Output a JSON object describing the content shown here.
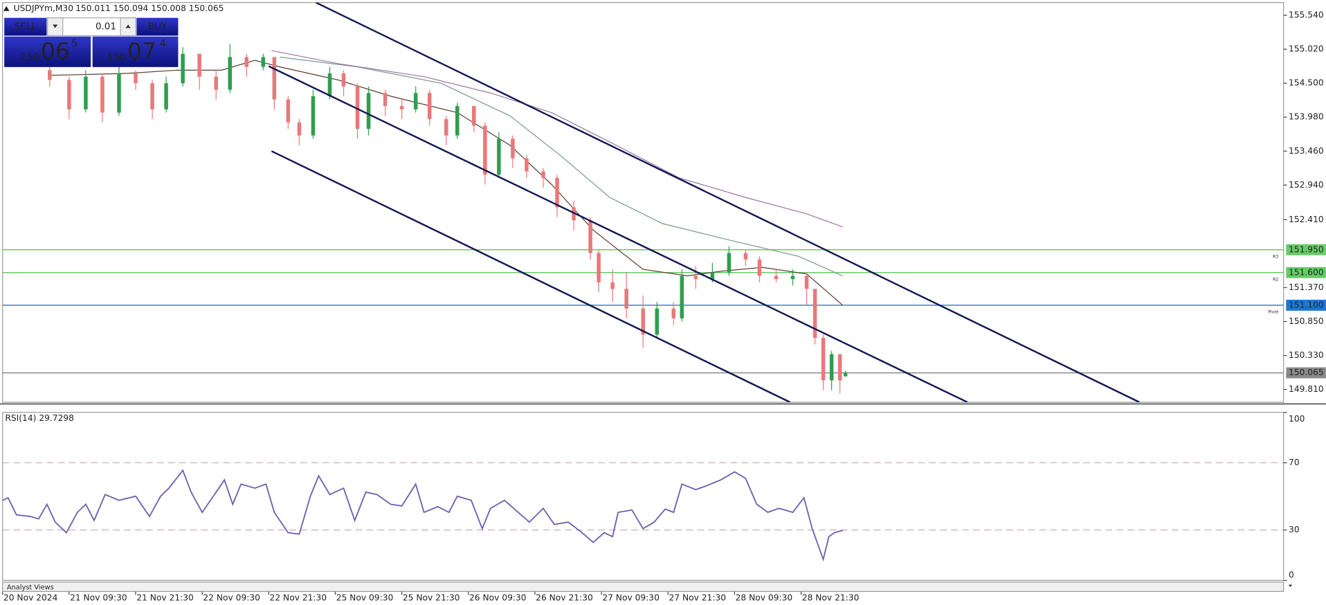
{
  "header": {
    "symbol": "USDJPYm,M30",
    "ohlc": "150.011 150.094 150.008 150.065"
  },
  "trade_panel": {
    "sell": "SELL",
    "lot": "0.01",
    "buy": "BUY",
    "bid_big": "150",
    "bid_main": "06",
    "bid_sup": "5",
    "ask_big": "150",
    "ask_main": "07",
    "ask_sup": "4"
  },
  "bottom_panel": {
    "title": "Analyst Views"
  },
  "chart_data": [
    {
      "type": "candlestick",
      "xlim": [
        0,
        462
      ],
      "ylim": [
        149.615,
        155.735
      ],
      "xticks": [
        {
          "value": 0,
          "label": "20 Nov 2024"
        },
        {
          "value": 24,
          "label": "21 Nov 09:30"
        },
        {
          "value": 48,
          "label": "21 Nov 21:30"
        },
        {
          "value": 72,
          "label": "22 Nov 09:30"
        },
        {
          "value": 96,
          "label": "22 Nov 21:30"
        },
        {
          "value": 120,
          "label": "25 Nov 09:30"
        },
        {
          "value": 144,
          "label": "25 Nov 21:30"
        },
        {
          "value": 168,
          "label": "26 Nov 09:30"
        },
        {
          "value": 192,
          "label": "26 Nov 21:30"
        },
        {
          "value": 216,
          "label": "27 Nov 09:30"
        },
        {
          "value": 240,
          "label": "27 Nov 21:30"
        },
        {
          "value": 264,
          "label": "28 Nov 09:30"
        },
        {
          "value": 288,
          "label": "28 Nov 21:30"
        }
      ],
      "yticks": [
        {
          "value": 155.54,
          "label": "155.540"
        },
        {
          "value": 155.02,
          "label": "155.020"
        },
        {
          "value": 154.5,
          "label": "154.500"
        },
        {
          "value": 153.98,
          "label": "153.980"
        },
        {
          "value": 153.46,
          "label": "153.460"
        },
        {
          "value": 152.94,
          "label": "152.940"
        },
        {
          "value": 152.41,
          "label": "152.410"
        },
        {
          "value": 151.37,
          "label": "151.370"
        },
        {
          "value": 150.85,
          "label": "150.850"
        },
        {
          "value": 150.33,
          "label": "150.330"
        },
        {
          "value": 149.81,
          "label": "149.810"
        }
      ],
      "bull_color": "#2e9e4f",
      "bear_color": "#e8797b",
      "candles": {
        "x": [
          17,
          24,
          30,
          36,
          42,
          48,
          54,
          59,
          65,
          71,
          77,
          82,
          88,
          94,
          98,
          103,
          107,
          112,
          118,
          123,
          128,
          132,
          138,
          144,
          149,
          154,
          160,
          164,
          170,
          174,
          179,
          184,
          189,
          195,
          200,
          206,
          212,
          215,
          220,
          225,
          231,
          236,
          242,
          245,
          250,
          256,
          262,
          268,
          273,
          279,
          285,
          290,
          293,
          296,
          299,
          302,
          304
        ],
        "open": [
          154.7,
          154.55,
          154.1,
          154.6,
          154.05,
          154.65,
          154.5,
          154.1,
          154.5,
          154.95,
          154.6,
          154.4,
          154.9,
          154.75,
          154.9,
          154.25,
          153.9,
          153.7,
          154.3,
          154.65,
          154.45,
          153.8,
          154.35,
          154.15,
          154.1,
          154.35,
          153.95,
          153.7,
          154.15,
          153.85,
          153.1,
          153.65,
          153.35,
          153.15,
          153.05,
          152.6,
          152.4,
          151.9,
          151.45,
          151.35,
          151.05,
          150.65,
          151.05,
          150.9,
          151.55,
          151.5,
          151.6,
          151.9,
          151.8,
          151.55,
          151.5,
          151.55,
          151.35,
          150.6,
          149.95,
          150.35,
          150.011
        ],
        "high": [
          154.8,
          154.6,
          154.7,
          154.65,
          154.75,
          154.7,
          154.55,
          154.6,
          155.05,
          154.95,
          154.7,
          155.1,
          154.95,
          154.95,
          154.9,
          154.3,
          153.95,
          154.4,
          154.75,
          154.7,
          154.5,
          154.45,
          154.4,
          154.25,
          154.45,
          154.4,
          154.0,
          154.2,
          154.15,
          153.9,
          153.75,
          153.7,
          153.4,
          153.2,
          153.1,
          152.7,
          152.45,
          151.95,
          151.65,
          151.6,
          151.25,
          151.15,
          151.15,
          151.65,
          151.7,
          151.75,
          152.0,
          151.95,
          151.85,
          151.65,
          151.65,
          151.6,
          151.35,
          150.65,
          150.4,
          150.35,
          150.094
        ],
        "low": [
          154.45,
          153.95,
          154.05,
          153.9,
          154.0,
          154.4,
          153.95,
          154.05,
          154.45,
          154.4,
          154.25,
          154.35,
          154.6,
          154.7,
          154.1,
          153.8,
          153.55,
          153.65,
          154.25,
          154.3,
          153.65,
          153.7,
          154.0,
          153.95,
          154.05,
          153.85,
          153.55,
          153.65,
          153.75,
          152.95,
          153.05,
          153.2,
          153.05,
          152.9,
          152.45,
          152.25,
          151.8,
          151.3,
          151.15,
          150.9,
          150.45,
          150.6,
          150.8,
          150.85,
          151.35,
          151.45,
          151.55,
          151.7,
          151.45,
          151.45,
          151.4,
          151.1,
          150.5,
          149.8,
          149.8,
          149.75,
          150.008
        ],
        "close": [
          154.55,
          154.1,
          154.6,
          154.05,
          154.65,
          154.5,
          154.1,
          154.5,
          154.95,
          154.6,
          154.4,
          154.9,
          154.75,
          154.9,
          154.25,
          153.9,
          153.7,
          154.3,
          154.65,
          154.45,
          153.8,
          154.35,
          154.15,
          154.1,
          154.35,
          153.95,
          153.7,
          154.15,
          153.85,
          153.1,
          153.65,
          153.35,
          153.15,
          153.05,
          152.6,
          152.4,
          151.9,
          151.45,
          151.35,
          151.05,
          150.65,
          151.05,
          150.9,
          151.55,
          151.5,
          151.6,
          151.9,
          151.8,
          151.55,
          151.5,
          151.55,
          151.35,
          150.6,
          149.95,
          150.35,
          149.95,
          150.065
        ]
      },
      "lines": [
        {
          "color": "#5c3b2e",
          "x": [
            17,
            45,
            63,
            79,
            91,
            100,
            121,
            140,
            164,
            183,
            198,
            213,
            231,
            247,
            259,
            274,
            290,
            303
          ],
          "values": [
            154.62,
            154.65,
            154.7,
            154.7,
            154.85,
            154.75,
            154.55,
            154.3,
            154.05,
            153.55,
            152.95,
            152.25,
            151.65,
            151.55,
            151.62,
            151.68,
            151.58,
            151.1
          ]
        },
        {
          "color": "#7d9a88",
          "x": [
            100,
            128,
            158,
            183,
            201,
            219,
            238,
            262,
            287,
            303
          ],
          "values": [
            154.9,
            154.75,
            154.5,
            154.0,
            153.4,
            152.75,
            152.35,
            152.1,
            151.85,
            151.55
          ]
        },
        {
          "color": "#9a76a6",
          "x": [
            97,
            121,
            152,
            176,
            198,
            219,
            244,
            268,
            290,
            303
          ],
          "values": [
            155.0,
            154.8,
            154.6,
            154.35,
            154.05,
            153.6,
            153.05,
            152.75,
            152.5,
            152.3
          ]
        }
      ],
      "trendlines": [
        {
          "color": "#141850",
          "x": [
            113,
            410
          ],
          "values": [
            155.735,
            149.615
          ]
        },
        {
          "color": "#141850",
          "x": [
            96,
            348
          ],
          "values": [
            154.76,
            149.615
          ]
        },
        {
          "color": "#141850",
          "x": [
            97,
            284
          ],
          "values": [
            153.46,
            149.615
          ]
        }
      ],
      "levels": [
        {
          "value": 151.95,
          "label": "151.950",
          "name": "R3",
          "color": "#66cc66"
        },
        {
          "value": 151.6,
          "label": "151.600",
          "name": "R2",
          "color": "#66cc66"
        },
        {
          "value": 151.1,
          "label": "151.100",
          "name": "Pivot",
          "color": "#1e78d2"
        },
        {
          "value": 150.065,
          "label": "150.065",
          "color": "#8a8a8a"
        }
      ]
    },
    {
      "type": "line",
      "title": "RSI(14) 29.7298",
      "color": "#6f5fae",
      "xlim": [
        0,
        462
      ],
      "ylim": [
        0,
        100
      ],
      "yticks": [
        0,
        30,
        70,
        100
      ],
      "dashed_levels": [
        30,
        70
      ],
      "x": [
        0,
        2,
        5,
        10,
        13,
        16,
        19,
        23,
        27,
        30,
        33,
        37,
        42,
        48,
        53,
        57,
        60,
        65,
        68,
        72,
        76,
        80,
        83,
        86,
        91,
        95,
        98,
        103,
        107,
        111,
        114,
        118,
        123,
        127,
        131,
        135,
        140,
        144,
        149,
        152,
        157,
        161,
        164,
        169,
        173,
        176,
        181,
        186,
        190,
        195,
        199,
        204,
        209,
        213,
        217,
        220,
        222,
        227,
        231,
        235,
        239,
        242,
        245,
        250,
        254,
        259,
        264,
        268,
        272,
        276,
        280,
        285,
        289,
        292,
        296,
        298,
        300,
        303
      ],
      "values": [
        47.7,
        49.2,
        39.0,
        38.1,
        36.6,
        45.3,
        34.7,
        28.4,
        40.5,
        45.3,
        35.7,
        51.1,
        47.7,
        50.1,
        38.1,
        50.1,
        54.9,
        65.5,
        52.5,
        40.5,
        50.1,
        59.8,
        45.3,
        57.3,
        54.9,
        57.3,
        40.5,
        28.4,
        27.5,
        50.1,
        62.2,
        51.1,
        54.9,
        35.7,
        52.5,
        51.1,
        45.3,
        44.3,
        57.3,
        40.5,
        43.9,
        40.5,
        50.1,
        47.7,
        30.8,
        42.9,
        47.7,
        40.5,
        34.7,
        42.9,
        33.3,
        34.7,
        28.4,
        22.7,
        28.4,
        26.0,
        40.5,
        41.9,
        30.8,
        34.7,
        42.4,
        40.5,
        57.3,
        54.0,
        56.4,
        59.8,
        64.6,
        60.7,
        45.3,
        40.5,
        42.9,
        40.5,
        49.2,
        30.8,
        12.5,
        26.0,
        28.4,
        29.7298
      ]
    }
  ]
}
